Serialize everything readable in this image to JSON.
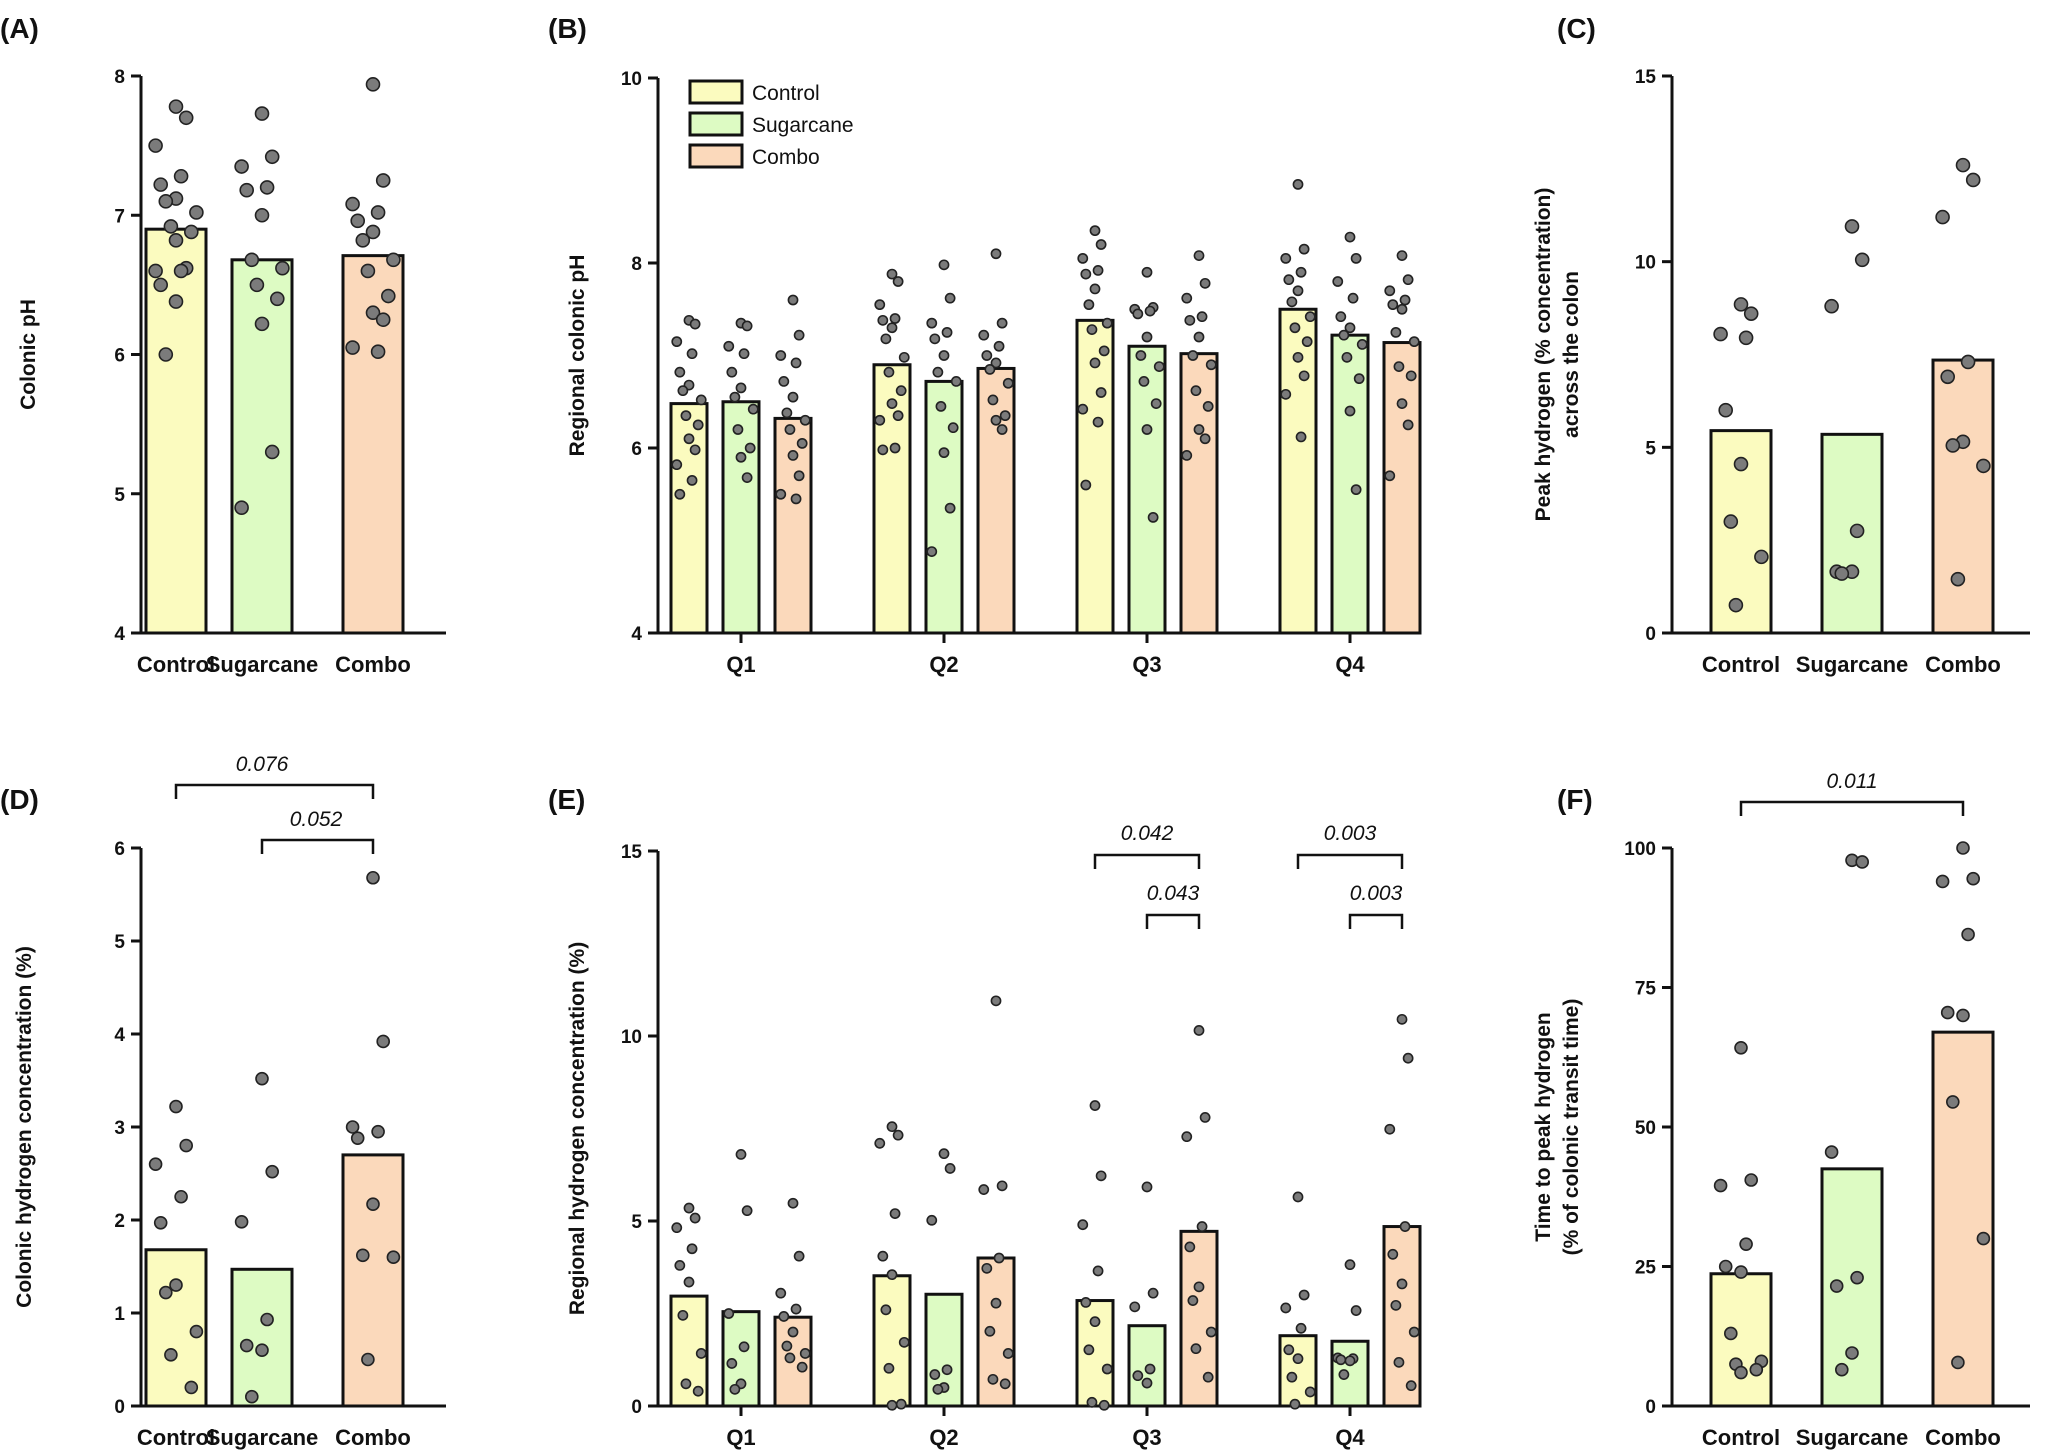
{
  "colors": {
    "Control": "#fbfbbf",
    "Sugarcane": "#ddfbc3",
    "Combo": "#fbd9bb",
    "dot": "#7b7b7b",
    "stroke": "#111111"
  },
  "chart_data": [
    {
      "id": "A",
      "panel_label": "(A)",
      "type": "bar",
      "categories": [
        "Control",
        "Sugarcane",
        "Combo"
      ],
      "values": [
        6.9,
        6.68,
        6.71
      ],
      "points": [
        [
          7.78,
          7.7,
          7.5,
          7.28,
          7.22,
          7.12,
          7.1,
          7.02,
          6.92,
          6.88,
          6.82,
          6.62,
          6.6,
          6.6,
          6.5,
          6.38,
          6.0
        ],
        [
          7.73,
          7.42,
          7.35,
          7.2,
          7.18,
          7.0,
          6.68,
          6.62,
          6.5,
          6.4,
          6.22,
          5.3,
          4.9
        ],
        [
          7.94,
          7.25,
          7.08,
          7.02,
          6.96,
          6.88,
          6.82,
          6.68,
          6.6,
          6.42,
          6.3,
          6.25,
          6.05,
          6.02
        ]
      ],
      "ylabel": "Colonic pH",
      "ylim": [
        4,
        8
      ],
      "yticks": [
        "4",
        "5",
        "6",
        "7",
        "8"
      ]
    },
    {
      "id": "B",
      "panel_label": "(B)",
      "type": "bar",
      "categories": [
        "Q1",
        "Q2",
        "Q3",
        "Q4"
      ],
      "series": [
        {
          "name": "Control",
          "values": [
            6.48,
            6.9,
            7.38,
            7.5
          ],
          "points": [
            [
              7.38,
              7.34,
              7.15,
              7.02,
              6.82,
              6.68,
              6.62,
              6.52,
              6.35,
              6.25,
              6.1,
              5.98,
              5.82,
              5.65,
              5.5
            ],
            [
              7.88,
              7.8,
              7.55,
              7.4,
              7.38,
              7.3,
              7.18,
              6.98,
              6.82,
              6.62,
              6.48,
              6.35,
              6.3,
              6.0,
              5.98
            ],
            [
              8.35,
              8.2,
              8.05,
              7.92,
              7.88,
              7.72,
              7.55,
              7.35,
              7.28,
              7.05,
              6.92,
              6.6,
              6.42,
              6.28,
              5.6
            ],
            [
              8.85,
              8.15,
              8.05,
              7.9,
              7.82,
              7.7,
              7.58,
              7.42,
              7.3,
              7.15,
              6.98,
              6.78,
              6.58,
              6.12
            ]
          ]
        },
        {
          "name": "Sugarcane",
          "values": [
            6.5,
            6.72,
            7.1,
            7.22
          ],
          "points": [
            [
              7.35,
              7.32,
              7.1,
              7.02,
              6.82,
              6.65,
              6.55,
              6.42,
              6.2,
              6.0,
              5.9,
              5.68
            ],
            [
              7.98,
              7.62,
              7.35,
              7.25,
              7.18,
              7.0,
              6.82,
              6.72,
              6.45,
              6.22,
              5.95,
              5.35,
              4.88
            ],
            [
              7.9,
              7.52,
              7.5,
              7.48,
              7.45,
              7.2,
              7.0,
              6.88,
              6.72,
              6.48,
              6.2,
              5.25
            ],
            [
              8.28,
              8.05,
              7.8,
              7.62,
              7.42,
              7.3,
              7.22,
              7.12,
              6.98,
              6.75,
              6.4,
              5.55
            ]
          ]
        },
        {
          "name": "Combo",
          "values": [
            6.32,
            6.86,
            7.02,
            7.14
          ],
          "points": [
            [
              7.6,
              7.22,
              7.0,
              6.92,
              6.72,
              6.55,
              6.38,
              6.3,
              6.2,
              6.05,
              5.92,
              5.7,
              5.5,
              5.45
            ],
            [
              8.1,
              7.35,
              7.22,
              7.1,
              7.0,
              6.92,
              6.85,
              6.7,
              6.52,
              6.35,
              6.3,
              6.2
            ],
            [
              8.08,
              7.78,
              7.62,
              7.42,
              7.38,
              7.2,
              7.0,
              6.9,
              6.62,
              6.45,
              6.2,
              6.1,
              5.92
            ],
            [
              8.08,
              7.82,
              7.7,
              7.6,
              7.55,
              7.5,
              7.25,
              7.15,
              6.88,
              6.78,
              6.48,
              6.25,
              5.7
            ]
          ]
        }
      ],
      "ylabel": "Regional colonic pH",
      "ylim": [
        4,
        10
      ],
      "yticks": [
        "4",
        "6",
        "8",
        "10"
      ],
      "legend": [
        "Control",
        "Sugarcane",
        "Combo"
      ],
      "legend_position": "top-left"
    },
    {
      "id": "C",
      "panel_label": "(C)",
      "type": "bar",
      "categories": [
        "Control",
        "Sugarcane",
        "Combo"
      ],
      "values": [
        5.45,
        5.35,
        7.35
      ],
      "points": [
        [
          8.85,
          8.6,
          8.05,
          7.95,
          6.0,
          4.55,
          3.0,
          2.05,
          0.75
        ],
        [
          10.95,
          10.05,
          8.8,
          2.75,
          1.65,
          1.65,
          1.6
        ],
        [
          12.6,
          12.2,
          11.2,
          7.3,
          6.9,
          5.15,
          5.05,
          4.5,
          1.45
        ]
      ],
      "ylabel": "Peak hydrogen (% concentration)\nacross the colon",
      "ylim": [
        0,
        15
      ],
      "yticks": [
        "0",
        "5",
        "10",
        "15"
      ]
    },
    {
      "id": "D",
      "panel_label": "(D)",
      "type": "bar",
      "categories": [
        "Control",
        "Sugarcane",
        "Combo"
      ],
      "values": [
        1.68,
        1.47,
        2.7
      ],
      "points": [
        [
          3.22,
          2.8,
          2.6,
          2.25,
          1.97,
          1.3,
          1.22,
          0.8,
          0.55,
          0.2
        ],
        [
          3.52,
          2.52,
          1.98,
          0.93,
          0.65,
          0.6,
          0.1
        ],
        [
          5.68,
          3.92,
          3.0,
          2.95,
          2.88,
          2.17,
          1.62,
          1.6,
          0.5
        ]
      ],
      "ylabel": "Colonic hydrogen concentration (%)",
      "ylim": [
        0,
        6
      ],
      "yticks": [
        "0",
        "1",
        "2",
        "3",
        "4",
        "5",
        "6"
      ],
      "brackets": [
        {
          "from": 0,
          "to": 2,
          "label": "0.076"
        },
        {
          "from": 1,
          "to": 2,
          "label": "0.052"
        }
      ]
    },
    {
      "id": "E",
      "panel_label": "(E)",
      "type": "bar",
      "categories": [
        "Q1",
        "Q2",
        "Q3",
        "Q4"
      ],
      "series": [
        {
          "name": "Control",
          "values": [
            2.97,
            3.52,
            2.85,
            1.9
          ],
          "points": [
            [
              5.35,
              5.08,
              4.82,
              4.25,
              3.8,
              3.35,
              2.45,
              1.42,
              0.6,
              0.4
            ],
            [
              7.55,
              7.32,
              7.1,
              5.2,
              4.05,
              3.55,
              2.6,
              1.72,
              1.02,
              0.05,
              0.02
            ],
            [
              8.12,
              6.22,
              4.9,
              3.65,
              2.8,
              2.28,
              1.52,
              1.0,
              0.1,
              0.02
            ],
            [
              5.65,
              3.0,
              2.65,
              2.1,
              1.52,
              1.28,
              0.78,
              0.38,
              0.05
            ]
          ]
        },
        {
          "name": "Sugarcane",
          "values": [
            2.55,
            3.02,
            2.17,
            1.75
          ],
          "points": [
            [
              6.8,
              5.28,
              2.5,
              1.6,
              1.15,
              0.6,
              0.45
            ],
            [
              6.82,
              6.42,
              5.02,
              0.98,
              0.85,
              0.5,
              0.45
            ],
            [
              5.92,
              3.05,
              2.68,
              1.0,
              0.82,
              0.62
            ],
            [
              3.82,
              2.58,
              1.3,
              1.28,
              1.25,
              1.22,
              0.85
            ]
          ]
        },
        {
          "name": "Combo",
          "values": [
            2.4,
            4.0,
            4.72,
            4.85
          ],
          "points": [
            [
              5.48,
              4.05,
              3.05,
              2.62,
              2.42,
              2.0,
              1.62,
              1.42,
              1.3,
              1.05
            ],
            [
              10.95,
              5.95,
              5.85,
              4.0,
              3.72,
              2.78,
              2.02,
              1.42,
              0.72,
              0.6
            ],
            [
              10.15,
              7.8,
              7.28,
              4.85,
              4.3,
              3.22,
              2.85,
              2.0,
              1.55,
              0.78
            ],
            [
              10.45,
              9.4,
              7.48,
              4.85,
              4.1,
              3.3,
              2.72,
              2.0,
              1.18,
              0.55
            ]
          ]
        }
      ],
      "ylabel": "Regional hydrogen concentration (%)",
      "ylim": [
        0,
        15
      ],
      "yticks": [
        "0",
        "5",
        "10",
        "15"
      ],
      "brackets": [
        {
          "group": 2,
          "from": 0,
          "to": 2,
          "label": "0.042"
        },
        {
          "group": 2,
          "from": 1,
          "to": 2,
          "label": "0.043"
        },
        {
          "group": 3,
          "from": 0,
          "to": 2,
          "label": "0.003"
        },
        {
          "group": 3,
          "from": 1,
          "to": 2,
          "label": "0.003"
        }
      ]
    },
    {
      "id": "F",
      "panel_label": "(F)",
      "type": "bar",
      "categories": [
        "Control",
        "Sugarcane",
        "Combo"
      ],
      "values": [
        23.7,
        42.5,
        67.0
      ],
      "points": [
        [
          64.2,
          40.5,
          39.5,
          29.0,
          25.0,
          24.0,
          13.0,
          8.0,
          7.5,
          6.5,
          6.0
        ],
        [
          97.8,
          97.5,
          45.5,
          23.0,
          21.5,
          9.5,
          6.5
        ],
        [
          100.0,
          94.5,
          94.0,
          84.5,
          70.5,
          70.0,
          54.5,
          30.0,
          7.8
        ]
      ],
      "ylabel": "Time to peak hydrogen\n(% of colonic transit time)",
      "ylim": [
        0,
        100
      ],
      "yticks": [
        "0",
        "25",
        "50",
        "75",
        "100"
      ],
      "brackets": [
        {
          "from": 0,
          "to": 2,
          "label": "0.011"
        }
      ]
    }
  ]
}
